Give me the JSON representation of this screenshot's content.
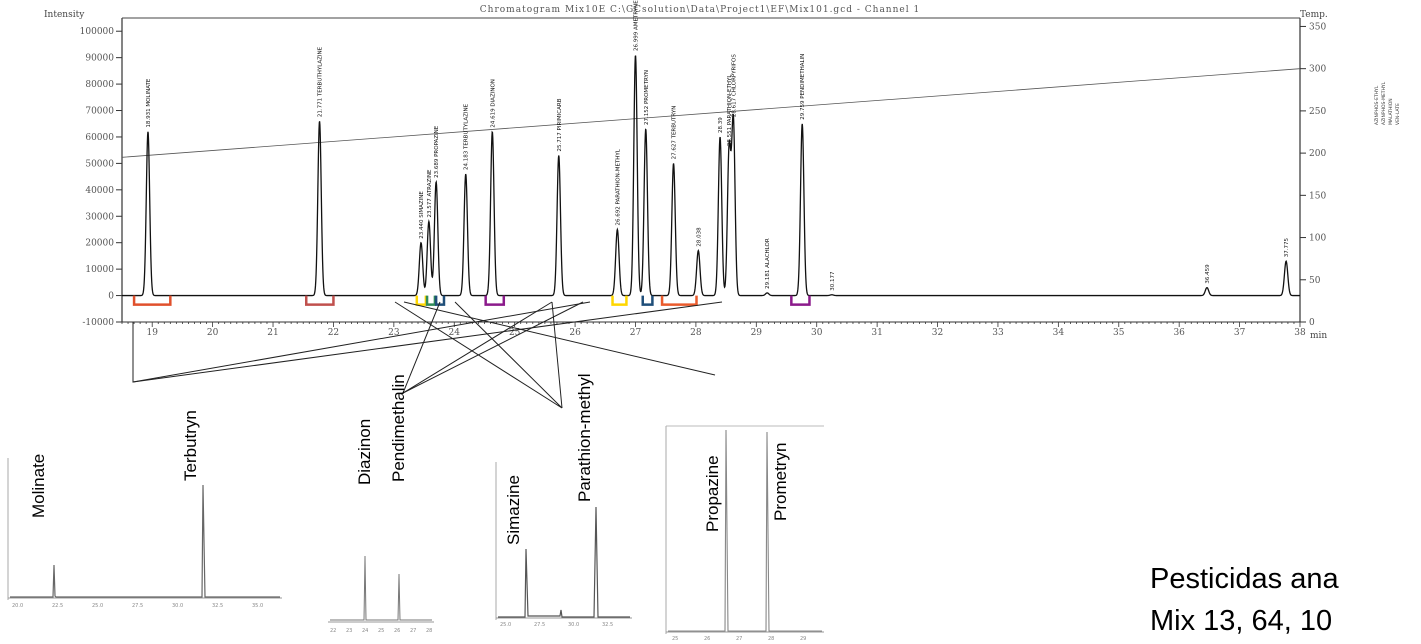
{
  "chart_data": {
    "type": "line",
    "title": "Chromatogram Mix10E C:\\GCsolution\\Data\\Project1\\EF\\Mix101.gcd - Channel 1",
    "ylabel": "Intensity",
    "y2label": "Temp.",
    "xlabel": "min",
    "xlim": [
      18.5,
      38.0
    ],
    "ylim": [
      -10000,
      105000
    ],
    "y2lim": [
      0,
      360
    ],
    "x_ticks": [
      "19",
      "20",
      "21",
      "22",
      "23",
      "24",
      "25",
      "26",
      "27",
      "28",
      "29",
      "30",
      "31",
      "32",
      "33",
      "34",
      "35",
      "36",
      "37",
      "38"
    ],
    "y_ticks": [
      {
        "value": 100000,
        "label": "100000"
      },
      {
        "value": 90000,
        "label": "90000"
      },
      {
        "value": 80000,
        "label": "80000"
      },
      {
        "value": 70000,
        "label": "70000"
      },
      {
        "value": 60000,
        "label": "60000"
      },
      {
        "value": 50000,
        "label": "50000"
      },
      {
        "value": 40000,
        "label": "40000"
      },
      {
        "value": 30000,
        "label": "30000"
      },
      {
        "value": 20000,
        "label": "20000"
      },
      {
        "value": 10000,
        "label": "10000"
      },
      {
        "value": 0,
        "label": "0"
      },
      {
        "value": -10000,
        "label": "-10000"
      }
    ],
    "y2_ticks": [
      {
        "value": 350,
        "label": "350"
      },
      {
        "value": 300,
        "label": "300"
      },
      {
        "value": 250,
        "label": "250"
      },
      {
        "value": 200,
        "label": "200"
      },
      {
        "value": 150,
        "label": "150"
      },
      {
        "value": 100,
        "label": "100"
      },
      {
        "value": 50,
        "label": "50"
      },
      {
        "value": 0,
        "label": "0"
      }
    ],
    "temperature_program": {
      "x": [
        18.5,
        38.0
      ],
      "y": [
        195,
        300
      ]
    },
    "peaks": [
      {
        "rt": 18.93,
        "height": 62000,
        "label": "18.931 MOLINATE"
      },
      {
        "rt": 21.77,
        "height": 66000,
        "label": "21.771 TERBUTHYLAZINE"
      },
      {
        "rt": 23.45,
        "height": 20000,
        "label": "23.440 SIMAZINE"
      },
      {
        "rt": 23.58,
        "height": 28000,
        "label": "23.577 ATRAZINE"
      },
      {
        "rt": 23.7,
        "height": 43000,
        "label": "23.689 PROPAZINE"
      },
      {
        "rt": 24.19,
        "height": 46000,
        "label": "24.183 TERBUTYLAZINE"
      },
      {
        "rt": 24.63,
        "height": 62000,
        "label": "24.619 DIAZINON"
      },
      {
        "rt": 25.73,
        "height": 53000,
        "label": "25.717 PIRIMICARB"
      },
      {
        "rt": 26.7,
        "height": 25000,
        "label": "26.692 PARATHION-METHYL"
      },
      {
        "rt": 27.0,
        "height": 91000,
        "label": "26.999 AMETRYNE"
      },
      {
        "rt": 27.17,
        "height": 63000,
        "label": "27.152 PROMETRYN"
      },
      {
        "rt": 27.63,
        "height": 50000,
        "label": "27.627 TERBUTRYN"
      },
      {
        "rt": 28.04,
        "height": 17000,
        "label": "28.038"
      },
      {
        "rt": 28.4,
        "height": 60000,
        "label": "28.39"
      },
      {
        "rt": 28.55,
        "height": 55000,
        "label": "28.551 PARATHION-ETHYL"
      },
      {
        "rt": 28.62,
        "height": 66000,
        "label": "28.617 CHLORPYRIFOS"
      },
      {
        "rt": 29.18,
        "height": 1000,
        "label": "29.181 ALACHLOR"
      },
      {
        "rt": 29.76,
        "height": 65000,
        "label": "29.759 PENDIMETHALIN"
      },
      {
        "rt": 30.25,
        "height": 300,
        "label": "30.177"
      },
      {
        "rt": 36.46,
        "height": 3000,
        "label": "36.459"
      },
      {
        "rt": 37.77,
        "height": 13000,
        "label": "37.775"
      }
    ],
    "brackets": [
      {
        "from": 18.7,
        "to": 19.3,
        "color": "#e0502c"
      },
      {
        "from": 21.55,
        "to": 22.0,
        "color": "#c0504d"
      },
      {
        "from": 23.38,
        "to": 23.53,
        "color": "#ffd700"
      },
      {
        "from": 23.55,
        "to": 23.68,
        "color": "#2e8b57"
      },
      {
        "from": 23.7,
        "to": 23.83,
        "color": "#1f4e79"
      },
      {
        "from": 24.52,
        "to": 24.82,
        "color": "#8b1a8b"
      },
      {
        "from": 26.62,
        "to": 26.85,
        "color": "#ffd700"
      },
      {
        "from": 27.12,
        "to": 27.28,
        "color": "#1f4e79"
      },
      {
        "from": 27.44,
        "to": 28.01,
        "color": "#ea5b2c"
      },
      {
        "from": 29.58,
        "to": 29.88,
        "color": "#8b1a8b"
      }
    ]
  },
  "side_labels": [
    "AZINPHOS-ETHYL",
    "AZINPHOS-METHYL",
    "MALATHION",
    "VEN-LATE"
  ],
  "insets": [
    {
      "labels": [
        "Molinate",
        "Terbutryn"
      ],
      "ticks": [
        "20.0",
        "22.5",
        "25.0",
        "27.5",
        "30.0",
        "32.5",
        "35.0"
      ]
    },
    {
      "labels": [
        "Diazinon",
        "Pendimethalin"
      ],
      "ticks": [
        "22",
        "23",
        "24",
        "25",
        "26",
        "27",
        "28"
      ]
    },
    {
      "labels": [
        "Simazine",
        "Parathion-methyl"
      ],
      "ticks": [
        "25.0",
        "27.5",
        "30.0",
        "32.5"
      ]
    },
    {
      "labels": [
        "Propazine",
        "Prometryn"
      ],
      "ticks": [
        "25",
        "26",
        "27",
        "28",
        "29"
      ]
    }
  ],
  "caption": {
    "line1": "Pesticidas ana",
    "line2": "Mix 13, 64, 10"
  }
}
